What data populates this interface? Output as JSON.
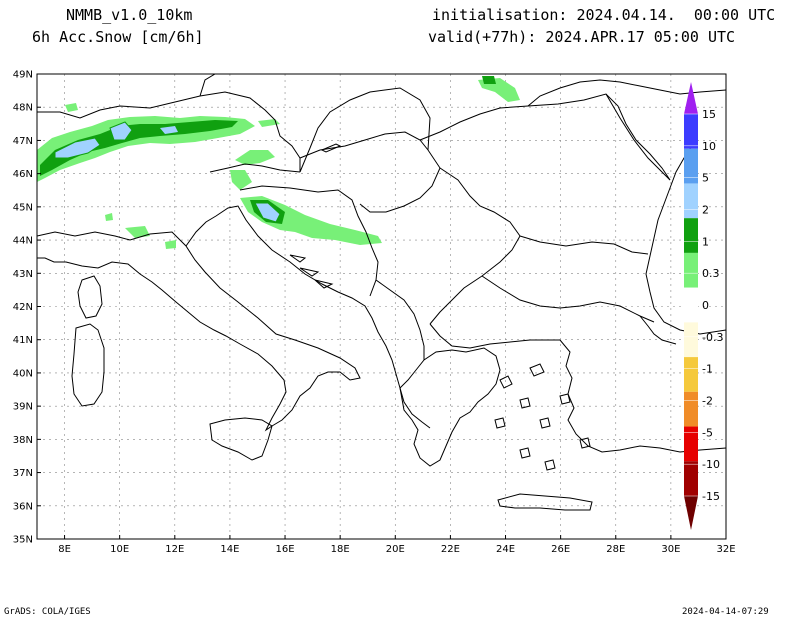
{
  "header": {
    "model": "NMMB_v1.0_10km",
    "field": "6h Acc.Snow [cm/6h]",
    "init": "initialisation: 2024.04.14.  00:00 UTC",
    "valid": "valid(+77h): 2024.APR.17 05:00 UTC"
  },
  "footer": {
    "left": "GrADS: COLA/IGES",
    "right": "2024-04-14-07:29"
  },
  "map": {
    "lat_labels": [
      "49N",
      "48N",
      "47N",
      "46N",
      "45N",
      "44N",
      "43N",
      "42N",
      "41N",
      "40N",
      "39N",
      "38N",
      "37N",
      "36N",
      "35N"
    ],
    "lon_labels": [
      "8E",
      "10E",
      "12E",
      "14E",
      "16E",
      "18E",
      "20E",
      "22E",
      "24E",
      "26E",
      "28E",
      "30E",
      "32E"
    ],
    "lat_range": [
      35,
      49
    ],
    "lon_range": [
      7,
      32
    ],
    "grid": true
  },
  "colorbar": {
    "labels": [
      "15",
      "10",
      "5",
      "2",
      "1",
      "0.3",
      "0",
      "-0.3",
      "-1",
      "-2",
      "-5",
      "-10",
      "-15"
    ],
    "colors": [
      "#a020f0",
      "#3c3cff",
      "#5a9ff0",
      "#a0d2ff",
      "#10a010",
      "#78f078",
      "#ffffff",
      "#fffadc",
      "#f5c93c",
      "#f08c28",
      "#e60000",
      "#a00000",
      "#6e0000"
    ]
  }
}
